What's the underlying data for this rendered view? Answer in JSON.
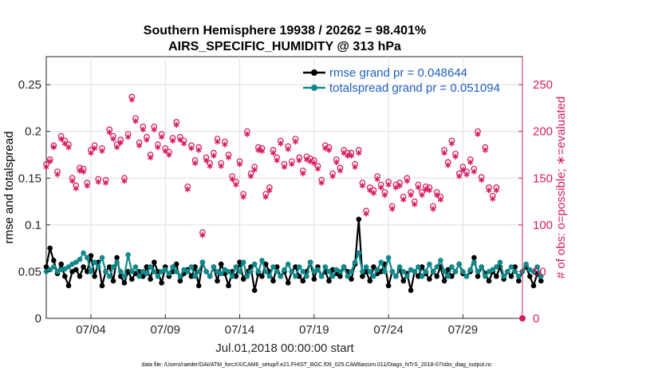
{
  "chart_data": {
    "type": "line",
    "title": "Southern Hemisphere 19938 / 20262 = 98.401%",
    "subtitle": "AIRS_SPECIFIC_HUMIDITY @ 313 hPa",
    "ylabel": "rmse and totalspread",
    "y2label": "# of obs: o=possible; ∗=evaluated",
    "xlabel": "Jul.01,2018 00:00:00 start",
    "ylim": [
      0,
      0.28
    ],
    "y2lim": [
      0,
      280
    ],
    "xlim": [
      1,
      33
    ],
    "yticks": [
      "0",
      "0.05",
      "0.1",
      "0.15",
      "0.2",
      "0.25"
    ],
    "y2ticks": [
      "0",
      "50",
      "100",
      "150",
      "200",
      "250"
    ],
    "xticks": [
      "07/04",
      "07/09",
      "07/14",
      "07/19",
      "07/24",
      "07/29"
    ],
    "legend": [
      "rmse grand pr = 0.048644",
      "totalspread grand pr = 0.051094"
    ],
    "footnote": "data file: /Users/raeder/DAI/ATM_forcXX/CAM6_setup/f.e21.FHIST_BGC.f09_025.CAM6assim.011/Diags_NTrS_2018-07/obs_diag_output.nc",
    "series": [
      {
        "name": "rmse",
        "color": "#000000",
        "values": [
          0.055,
          0.075,
          0.062,
          0.048,
          0.058,
          0.045,
          0.035,
          0.05,
          0.052,
          0.045,
          0.055,
          0.05,
          0.067,
          0.045,
          0.06,
          0.035,
          0.05,
          0.055,
          0.04,
          0.065,
          0.045,
          0.038,
          0.05,
          0.042,
          0.048,
          0.05,
          0.045,
          0.055,
          0.042,
          0.06,
          0.05,
          0.038,
          0.055,
          0.045,
          0.05,
          0.058,
          0.04,
          0.048,
          0.052,
          0.045,
          0.055,
          0.035,
          0.06,
          0.05,
          0.045,
          0.055,
          0.04,
          0.058,
          0.048,
          0.035,
          0.05,
          0.045,
          0.06,
          0.042,
          0.05,
          0.055,
          0.03,
          0.048,
          0.045,
          0.058,
          0.05,
          0.04,
          0.055,
          0.045,
          0.05,
          0.038,
          0.05,
          0.055,
          0.045,
          0.04,
          0.05,
          0.06,
          0.042,
          0.055,
          0.045,
          0.05,
          0.04,
          0.052,
          0.048,
          0.045,
          0.055,
          0.05,
          0.042,
          0.058,
          0.106,
          0.045,
          0.05,
          0.04,
          0.055,
          0.048,
          0.05,
          0.058,
          0.035,
          0.05,
          0.045,
          0.052,
          0.04,
          0.048,
          0.03,
          0.05,
          0.045,
          0.055,
          0.048,
          0.042,
          0.05,
          0.045,
          0.055,
          0.04,
          0.052,
          0.045,
          0.05,
          0.058,
          0.048,
          0.045,
          0.05,
          0.065,
          0.045,
          0.055,
          0.048,
          0.04,
          0.05,
          0.045,
          0.055,
          0.042,
          0.05,
          0.045,
          0.055,
          0.04,
          0.05,
          0.055,
          0.045,
          0.035,
          0.048,
          0.04
        ]
      },
      {
        "name": "totalspread",
        "color": "#10898b",
        "values": [
          0.05,
          0.052,
          0.055,
          0.05,
          0.052,
          0.053,
          0.055,
          0.058,
          0.06,
          0.063,
          0.07,
          0.065,
          0.05,
          0.06,
          0.055,
          0.065,
          0.05,
          0.045,
          0.055,
          0.06,
          0.05,
          0.045,
          0.068,
          0.05,
          0.055,
          0.045,
          0.05,
          0.048,
          0.055,
          0.05,
          0.045,
          0.05,
          0.052,
          0.048,
          0.055,
          0.05,
          0.045,
          0.052,
          0.05,
          0.055,
          0.045,
          0.05,
          0.06,
          0.05,
          0.045,
          0.055,
          0.05,
          0.048,
          0.052,
          0.05,
          0.045,
          0.055,
          0.05,
          0.06,
          0.045,
          0.05,
          0.058,
          0.05,
          0.062,
          0.05,
          0.045,
          0.055,
          0.05,
          0.045,
          0.052,
          0.058,
          0.05,
          0.045,
          0.055,
          0.05,
          0.045,
          0.06,
          0.05,
          0.052,
          0.045,
          0.055,
          0.05,
          0.045,
          0.052,
          0.05,
          0.055,
          0.045,
          0.05,
          0.06,
          0.07,
          0.05,
          0.055,
          0.05,
          0.045,
          0.052,
          0.06,
          0.05,
          0.065,
          0.05,
          0.045,
          0.055,
          0.05,
          0.045,
          0.052,
          0.05,
          0.055,
          0.045,
          0.05,
          0.058,
          0.05,
          0.055,
          0.062,
          0.05,
          0.045,
          0.055,
          0.05,
          0.058,
          0.05,
          0.045,
          0.052,
          0.06,
          0.05,
          0.055,
          0.045,
          0.05,
          0.052,
          0.055,
          0.06,
          0.045,
          0.05,
          0.055,
          0.05,
          0.045,
          0.05,
          0.058,
          0.052,
          0.05,
          0.055,
          0.045
        ]
      },
      {
        "name": "obs possible",
        "color": "#d81b60",
        "axis": "right",
        "values": [
          165,
          170,
          185,
          157,
          195,
          190,
          186,
          150,
          142,
          161,
          160,
          145,
          180,
          185,
          149,
          182,
          148,
          202,
          195,
          186,
          191,
          150,
          197,
          237,
          214,
          188,
          205,
          194,
          175,
          205,
          186,
          197,
          182,
          178,
          193,
          210,
          194,
          190,
          141,
          185,
          169,
          183,
          92,
          172,
          166,
          177,
          192,
          166,
          189,
          175,
          152,
          146,
          168,
          133,
          200,
          155,
          162,
          183,
          182,
          133,
          140,
          180,
          172,
          190,
          165,
          184,
          168,
          192,
          172,
          158,
          173,
          171,
          169,
          163,
          148,
          185,
          183,
          155,
          170,
          161,
          180,
          177,
          177,
          165,
          180,
          145,
          115,
          140,
          137,
          152,
          143,
          135,
          146,
          120,
          143,
          145,
          130,
          150,
          135,
          125,
          143,
          135,
          141,
          140,
          120,
          135,
          130,
          180,
          167,
          190,
          176,
          155,
          162,
          157,
          170,
          160,
          200,
          151,
          183,
          140,
          131,
          140
        ]
      },
      {
        "name": "obs evaluated",
        "color": "#d81b60",
        "axis": "right",
        "values": [
          162,
          168,
          183,
          154,
          192,
          187,
          183,
          147,
          139,
          158,
          157,
          142,
          177,
          182,
          146,
          179,
          145,
          199,
          192,
          183,
          188,
          147,
          194,
          234,
          211,
          185,
          202,
          191,
          172,
          202,
          183,
          194,
          179,
          175,
          190,
          207,
          191,
          187,
          138,
          182,
          166,
          180,
          89,
          169,
          163,
          174,
          189,
          163,
          186,
          172,
          149,
          143,
          165,
          130,
          197,
          152,
          159,
          180,
          179,
          130,
          137,
          177,
          169,
          187,
          162,
          181,
          165,
          189,
          169,
          155,
          170,
          168,
          166,
          160,
          145,
          182,
          180,
          152,
          167,
          158,
          177,
          174,
          174,
          162,
          177,
          142,
          112,
          137,
          134,
          149,
          140,
          132,
          143,
          117,
          140,
          142,
          127,
          147,
          132,
          122,
          140,
          132,
          138,
          137,
          117,
          132,
          127,
          177,
          164,
          187,
          173,
          152,
          159,
          154,
          167,
          157,
          197,
          148,
          180,
          137,
          128,
          137
        ]
      }
    ]
  }
}
